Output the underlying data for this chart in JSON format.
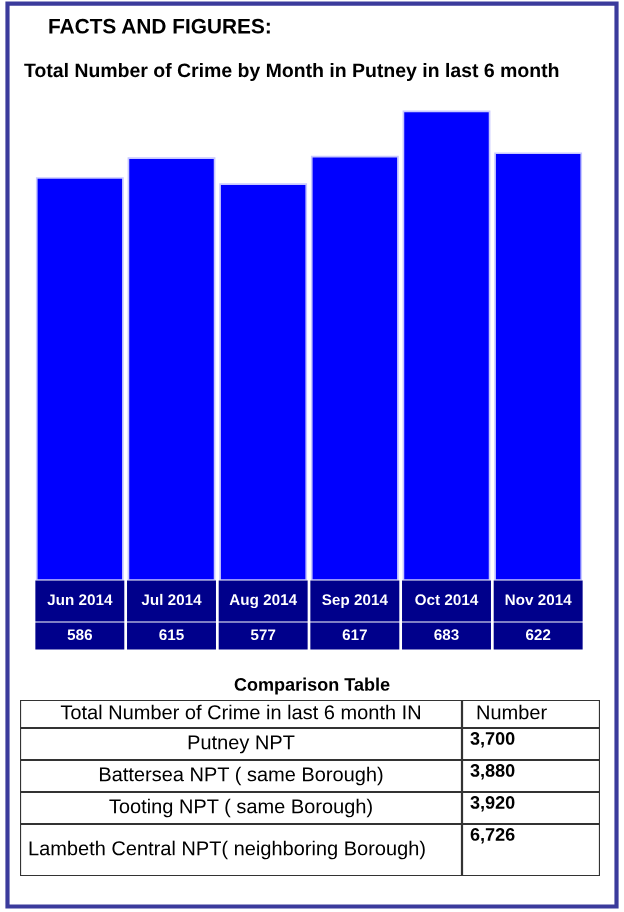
{
  "chart_data": [
    {
      "type": "bar",
      "title": "FACTS AND FIGURES:",
      "subtitle": "Total Number of Crime by Month in Putney in last 6 month",
      "categories": [
        "Jun 2014",
        "Jul 2014",
        "Aug 2014",
        "Sep 2014",
        "Oct 2014",
        "Nov 2014"
      ],
      "values": [
        586,
        615,
        577,
        617,
        683,
        622
      ],
      "color": "#0000ff",
      "data_labels": true
    },
    {
      "type": "other",
      "title": "Comparison Table",
      "xlabel": "Total Number of Crime in last 6 month IN",
      "ylabel": "Number",
      "categories": [
        "Putney NPT",
        "Battersea NPT ( same Borough)",
        "Tooting NPT ( same Borough)",
        "Lambeth Central NPT( neighboring Borough)"
      ],
      "values": [
        3700,
        3880,
        3920,
        6726
      ],
      "value_labels": [
        "3,700",
        "3,880",
        "3,920",
        "6,726"
      ]
    }
  ]
}
